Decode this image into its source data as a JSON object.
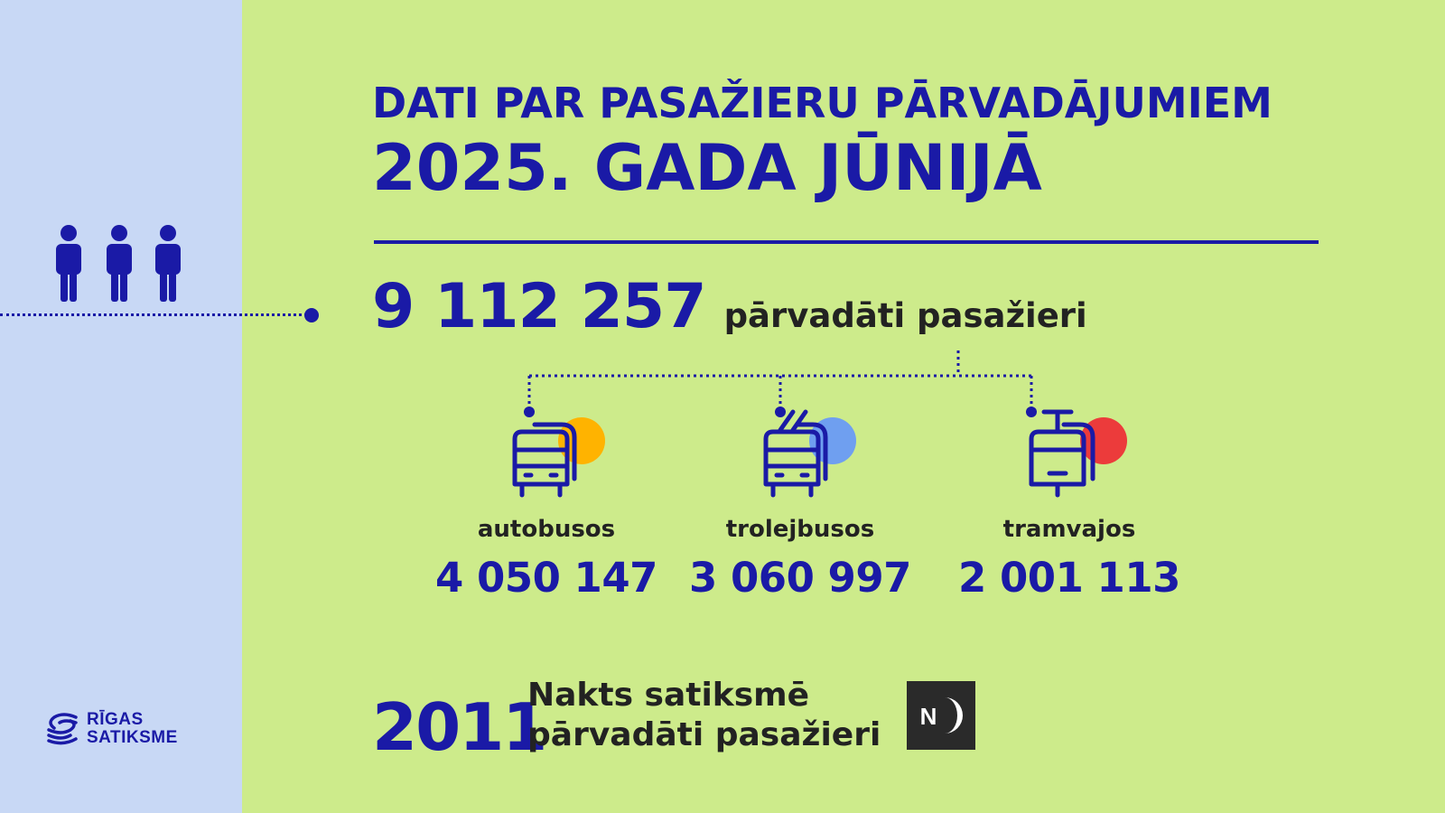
{
  "title": {
    "line1": "DATI PAR PASAŽIERU PĀRVADĀJUMIEM",
    "line2": "2025. GADA JŪNIJĀ"
  },
  "total": {
    "value": "9 112 257",
    "label": "pārvadāti pasažieri"
  },
  "modes": [
    {
      "label": "autobusos",
      "value": "4 050 147",
      "icon": "bus-icon",
      "accent": "#ffb300"
    },
    {
      "label": "trolejbusos",
      "value": "3 060 997",
      "icon": "trolleybus-icon",
      "accent": "#6f9ff0"
    },
    {
      "label": "tramvajos",
      "value": "2 001 113",
      "icon": "tram-icon",
      "accent": "#ec3b3b"
    }
  ],
  "night": {
    "value": "2011",
    "line1": "Nakts satiksmē",
    "line2": "pārvadāti pasažieri",
    "logo_letter": "N"
  },
  "brand": {
    "line1": "RĪGAS",
    "line2": "SATIKSME"
  },
  "colors": {
    "background": "#cdeb8b",
    "side_panel": "#c8d8f5",
    "primary": "#1a1aa6",
    "text_dark": "#222222"
  }
}
